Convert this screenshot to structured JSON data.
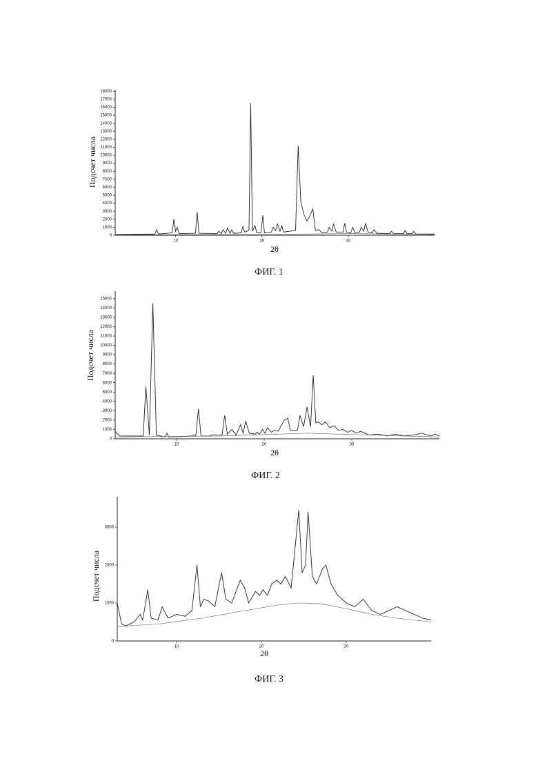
{
  "chart_data": [
    {
      "type": "line",
      "title": "ФИГ. 1",
      "x_label": "2θ",
      "y_label": "Подсчет числа",
      "xlim": [
        3,
        40
      ],
      "ylim": [
        0,
        18200
      ],
      "xticks": [
        10,
        20,
        30
      ],
      "yticks": [
        0,
        1000,
        2000,
        3000,
        4000,
        5000,
        6000,
        7000,
        8000,
        9000,
        10000,
        11000,
        12000,
        13000,
        14000,
        15000,
        16000,
        17000,
        18000
      ],
      "series": [
        {
          "color": "#222222",
          "x": [
            3,
            7.6,
            7.8,
            8,
            9.6,
            9.8,
            10,
            10.2,
            10.4,
            12.3,
            12.5,
            12.7,
            14.8,
            15,
            15.3,
            15.5,
            15.8,
            16,
            16.3,
            16.5,
            16.7,
            17.6,
            17.8,
            18,
            18.5,
            18.7,
            18.9,
            19.2,
            19.4,
            19.9,
            20.1,
            20.3,
            21.1,
            21.3,
            21.6,
            21.8,
            22.1,
            22.3,
            22.5,
            23.9,
            24.2,
            24.5,
            24.9,
            25.2,
            25.5,
            25.9,
            26.2,
            26.6,
            27,
            27.6,
            27.8,
            28.1,
            28.3,
            28.6,
            29.4,
            29.6,
            29.8,
            30.3,
            30.5,
            30.8,
            31.3,
            31.5,
            31.8,
            32,
            32.3,
            32.8,
            33,
            33.3,
            34.8,
            35,
            35.3,
            36.4,
            36.6,
            36.8,
            37.4,
            37.6,
            37.8,
            40
          ],
          "values": [
            100,
            150,
            700,
            150,
            300,
            2000,
            500,
            1000,
            200,
            250,
            2900,
            250,
            200,
            500,
            200,
            700,
            250,
            900,
            250,
            700,
            250,
            300,
            1100,
            400,
            600,
            16500,
            500,
            1200,
            300,
            300,
            2500,
            300,
            400,
            1000,
            600,
            1400,
            500,
            1200,
            400,
            600,
            11200,
            4200,
            2500,
            1800,
            2300,
            3300,
            600,
            700,
            300,
            400,
            1000,
            500,
            1400,
            400,
            400,
            1500,
            400,
            300,
            1000,
            300,
            400,
            1000,
            500,
            1500,
            400,
            300,
            700,
            250,
            200,
            500,
            200,
            200,
            600,
            200,
            200,
            500,
            150,
            150
          ]
        },
        {
          "color": "#555555",
          "x": [
            3,
            20,
            30,
            40
          ],
          "values": [
            50,
            100,
            200,
            100
          ]
        }
      ]
    },
    {
      "type": "line",
      "title": "ФИГ. 2",
      "x_label": "2θ",
      "y_label": "Подсчет числа",
      "xlim": [
        3,
        40
      ],
      "ylim": [
        0,
        15800
      ],
      "xticks": [
        10,
        20,
        30
      ],
      "yticks": [
        0,
        1000,
        2000,
        3000,
        4000,
        5000,
        6000,
        7000,
        8000,
        9000,
        10000,
        11000,
        12000,
        13000,
        14000,
        15000
      ],
      "series": [
        {
          "color": "#222222",
          "x": [
            3,
            3.5,
            6.2,
            6.5,
            6.9,
            7.3,
            7.7,
            8.7,
            8.9,
            9.1,
            11.7,
            11.9,
            12.2,
            12.5,
            12.8,
            13.8,
            14,
            15.2,
            15.5,
            15.8,
            16.3,
            16.8,
            17.3,
            17.6,
            17.9,
            18.3,
            19,
            19.2,
            19.5,
            19.8,
            20.1,
            20.4,
            20.8,
            21.2,
            21.6,
            22.3,
            22.7,
            23,
            23.8,
            24.1,
            24.5,
            24.9,
            25.3,
            25.6,
            25.9,
            26.2,
            26.6,
            27,
            27.5,
            28,
            28.5,
            29,
            29.5,
            30,
            30.5,
            31,
            32,
            33,
            34,
            35,
            36,
            37,
            38,
            39,
            39.5,
            40
          ],
          "values": [
            800,
            300,
            300,
            5600,
            400,
            14500,
            400,
            200,
            600,
            200,
            300,
            400,
            300,
            3200,
            300,
            300,
            400,
            400,
            2500,
            500,
            1000,
            400,
            1500,
            600,
            1900,
            600,
            500,
            700,
            500,
            1000,
            600,
            1200,
            700,
            900,
            800,
            2000,
            2200,
            900,
            900,
            2500,
            1300,
            3400,
            1300,
            6800,
            1700,
            1800,
            1500,
            1800,
            1200,
            1400,
            900,
            1000,
            700,
            900,
            600,
            800,
            400,
            500,
            300,
            500,
            300,
            400,
            600,
            300,
            500,
            300
          ]
        },
        {
          "color": "#555555",
          "x": [
            3,
            15,
            25,
            32,
            40
          ],
          "values": [
            200,
            300,
            600,
            400,
            200
          ]
        }
      ]
    },
    {
      "type": "line",
      "title": "ФИГ. 3",
      "x_label": "2θ",
      "y_label": "Подсчет числа",
      "xlim": [
        3,
        40
      ],
      "ylim": [
        0,
        3800
      ],
      "xticks": [
        10,
        20,
        30
      ],
      "yticks": [
        0,
        1000,
        2000,
        3000
      ],
      "series": [
        {
          "color": "#222222",
          "x": [
            3,
            3.5,
            4,
            5,
            5.7,
            6,
            6.6,
            7,
            7.8,
            8.3,
            9,
            10,
            11,
            11.8,
            12.4,
            12.8,
            13.2,
            13.8,
            14.5,
            15.3,
            15.8,
            16.5,
            17.5,
            18,
            18.5,
            19.3,
            19.8,
            20.2,
            20.7,
            21.2,
            21.8,
            22.3,
            22.8,
            23.5,
            24.4,
            24.8,
            25.2,
            25.5,
            26,
            26.5,
            27.2,
            27.6,
            28.2,
            29,
            30,
            31,
            32,
            33,
            34,
            36,
            38,
            39,
            40
          ],
          "values": [
            1000,
            450,
            400,
            500,
            700,
            550,
            1350,
            600,
            550,
            900,
            600,
            700,
            650,
            800,
            2000,
            900,
            1100,
            1050,
            900,
            1800,
            1100,
            1000,
            1600,
            1400,
            1000,
            1300,
            1200,
            1350,
            1200,
            1500,
            1600,
            1500,
            1700,
            1400,
            3450,
            1800,
            2000,
            3400,
            1700,
            1500,
            1900,
            2000,
            1500,
            1200,
            1000,
            900,
            1100,
            800,
            700,
            900,
            700,
            600,
            550
          ]
        },
        {
          "color": "#555555",
          "x": [
            3,
            8,
            13,
            18,
            22,
            24.5,
            27,
            30,
            33,
            36,
            40
          ],
          "values": [
            380,
            450,
            600,
            800,
            950,
            1000,
            980,
            850,
            700,
            600,
            500
          ]
        }
      ]
    }
  ]
}
